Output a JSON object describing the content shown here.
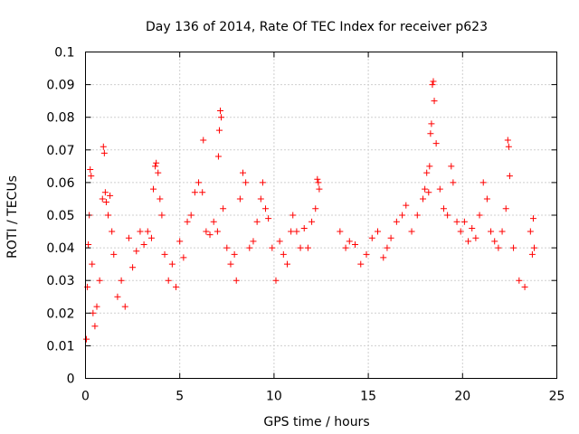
{
  "chart_data": {
    "type": "scatter",
    "title": "Day 136 of 2014, Rate Of TEC Index for receiver p623",
    "xlabel": "GPS time / hours",
    "ylabel": "ROTI / TECUs",
    "xlim": [
      0,
      25
    ],
    "ylim": [
      0,
      0.1
    ],
    "xticks": [
      0,
      5,
      10,
      15,
      20,
      25
    ],
    "yticks": [
      0,
      0.01,
      0.02,
      0.03,
      0.04,
      0.05,
      0.06,
      0.07,
      0.08,
      0.09,
      0.1
    ],
    "xtick_labels": [
      "0",
      "5",
      "10",
      "15",
      "20",
      "25"
    ],
    "ytick_labels": [
      "0",
      "0.01",
      "0.02",
      "0.03",
      "0.04",
      "0.05",
      "0.06",
      "0.07",
      "0.08",
      "0.09",
      "0.1"
    ],
    "grid": true,
    "marker": "+",
    "color": "#ff0000",
    "series": [
      {
        "points": [
          [
            0.05,
            0.012
          ],
          [
            0.1,
            0.028
          ],
          [
            0.15,
            0.041
          ],
          [
            0.2,
            0.05
          ],
          [
            0.25,
            0.064
          ],
          [
            0.3,
            0.062
          ],
          [
            0.35,
            0.035
          ],
          [
            0.4,
            0.02
          ],
          [
            0.5,
            0.016
          ],
          [
            0.6,
            0.022
          ],
          [
            0.75,
            0.03
          ],
          [
            0.9,
            0.055
          ],
          [
            0.95,
            0.071
          ],
          [
            1.0,
            0.069
          ],
          [
            1.05,
            0.057
          ],
          [
            1.1,
            0.054
          ],
          [
            1.2,
            0.05
          ],
          [
            1.3,
            0.056
          ],
          [
            1.4,
            0.045
          ],
          [
            1.5,
            0.038
          ],
          [
            1.7,
            0.025
          ],
          [
            1.9,
            0.03
          ],
          [
            2.1,
            0.022
          ],
          [
            2.3,
            0.043
          ],
          [
            2.5,
            0.034
          ],
          [
            2.7,
            0.039
          ],
          [
            2.9,
            0.045
          ],
          [
            3.1,
            0.041
          ],
          [
            3.3,
            0.045
          ],
          [
            3.5,
            0.043
          ],
          [
            3.6,
            0.058
          ],
          [
            3.7,
            0.065
          ],
          [
            3.75,
            0.066
          ],
          [
            3.85,
            0.063
          ],
          [
            3.95,
            0.055
          ],
          [
            4.05,
            0.05
          ],
          [
            4.2,
            0.038
          ],
          [
            4.4,
            0.03
          ],
          [
            4.6,
            0.035
          ],
          [
            4.8,
            0.028
          ],
          [
            5.0,
            0.042
          ],
          [
            5.2,
            0.037
          ],
          [
            5.4,
            0.048
          ],
          [
            5.6,
            0.05
          ],
          [
            5.8,
            0.057
          ],
          [
            6.0,
            0.06
          ],
          [
            6.2,
            0.057
          ],
          [
            6.25,
            0.073
          ],
          [
            6.4,
            0.045
          ],
          [
            6.6,
            0.044
          ],
          [
            6.8,
            0.048
          ],
          [
            7.0,
            0.045
          ],
          [
            7.05,
            0.068
          ],
          [
            7.1,
            0.076
          ],
          [
            7.15,
            0.082
          ],
          [
            7.2,
            0.08
          ],
          [
            7.3,
            0.052
          ],
          [
            7.5,
            0.04
          ],
          [
            7.7,
            0.035
          ],
          [
            7.9,
            0.038
          ],
          [
            8.0,
            0.03
          ],
          [
            8.2,
            0.055
          ],
          [
            8.35,
            0.063
          ],
          [
            8.5,
            0.06
          ],
          [
            8.7,
            0.04
          ],
          [
            8.9,
            0.042
          ],
          [
            9.1,
            0.048
          ],
          [
            9.3,
            0.055
          ],
          [
            9.4,
            0.06
          ],
          [
            9.55,
            0.052
          ],
          [
            9.7,
            0.049
          ],
          [
            9.9,
            0.04
          ],
          [
            10.1,
            0.03
          ],
          [
            10.3,
            0.042
          ],
          [
            10.5,
            0.038
          ],
          [
            10.7,
            0.035
          ],
          [
            10.9,
            0.045
          ],
          [
            11.0,
            0.05
          ],
          [
            11.2,
            0.045
          ],
          [
            11.4,
            0.04
          ],
          [
            11.6,
            0.046
          ],
          [
            11.8,
            0.04
          ],
          [
            12.0,
            0.048
          ],
          [
            12.2,
            0.052
          ],
          [
            12.3,
            0.061
          ],
          [
            12.35,
            0.06
          ],
          [
            12.4,
            0.058
          ],
          [
            13.5,
            0.045
          ],
          [
            13.8,
            0.04
          ],
          [
            14.0,
            0.042
          ],
          [
            14.3,
            0.041
          ],
          [
            14.6,
            0.035
          ],
          [
            14.9,
            0.038
          ],
          [
            15.2,
            0.043
          ],
          [
            15.5,
            0.045
          ],
          [
            15.8,
            0.037
          ],
          [
            16.0,
            0.04
          ],
          [
            16.2,
            0.043
          ],
          [
            16.5,
            0.048
          ],
          [
            16.8,
            0.05
          ],
          [
            17.0,
            0.053
          ],
          [
            17.3,
            0.045
          ],
          [
            17.6,
            0.05
          ],
          [
            17.9,
            0.055
          ],
          [
            18.0,
            0.058
          ],
          [
            18.1,
            0.063
          ],
          [
            18.2,
            0.057
          ],
          [
            18.25,
            0.065
          ],
          [
            18.3,
            0.075
          ],
          [
            18.35,
            0.078
          ],
          [
            18.4,
            0.09
          ],
          [
            18.45,
            0.091
          ],
          [
            18.5,
            0.085
          ],
          [
            18.6,
            0.072
          ],
          [
            18.8,
            0.058
          ],
          [
            19.0,
            0.052
          ],
          [
            19.2,
            0.05
          ],
          [
            19.4,
            0.065
          ],
          [
            19.5,
            0.06
          ],
          [
            19.7,
            0.048
          ],
          [
            19.9,
            0.045
          ],
          [
            20.1,
            0.048
          ],
          [
            20.3,
            0.042
          ],
          [
            20.5,
            0.046
          ],
          [
            20.7,
            0.043
          ],
          [
            20.9,
            0.05
          ],
          [
            21.1,
            0.06
          ],
          [
            21.3,
            0.055
          ],
          [
            21.5,
            0.045
          ],
          [
            21.7,
            0.042
          ],
          [
            21.9,
            0.04
          ],
          [
            22.1,
            0.045
          ],
          [
            22.3,
            0.052
          ],
          [
            22.4,
            0.073
          ],
          [
            22.45,
            0.071
          ],
          [
            22.5,
            0.062
          ],
          [
            22.7,
            0.04
          ],
          [
            23.0,
            0.03
          ],
          [
            23.3,
            0.028
          ],
          [
            23.6,
            0.045
          ],
          [
            23.7,
            0.038
          ],
          [
            23.75,
            0.049
          ],
          [
            23.8,
            0.04
          ]
        ]
      }
    ]
  }
}
